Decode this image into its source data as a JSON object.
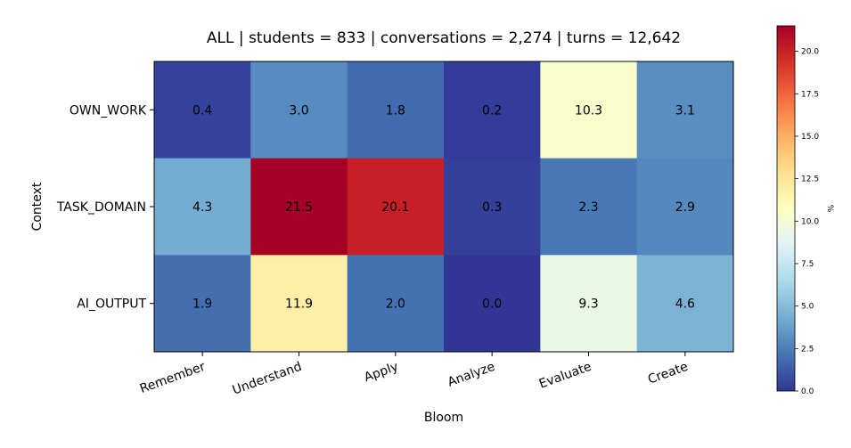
{
  "chart_data": {
    "type": "heatmap",
    "title": "ALL | students = 833 | conversations = 2,274 | turns = 12,642",
    "xlabel": "Bloom",
    "ylabel": "Context",
    "x_categories": [
      "Remember",
      "Understand",
      "Apply",
      "Analyze",
      "Evaluate",
      "Create"
    ],
    "y_categories": [
      "OWN_WORK",
      "TASK_DOMAIN",
      "AI_OUTPUT"
    ],
    "values": [
      [
        0.4,
        3.0,
        1.8,
        0.2,
        10.3,
        3.1
      ],
      [
        4.3,
        21.5,
        20.1,
        0.3,
        2.3,
        2.9
      ],
      [
        1.9,
        11.9,
        2.0,
        0.0,
        9.3,
        4.6
      ]
    ],
    "value_format": "0.0",
    "colormap": "RdYlBu_r",
    "colorbar": {
      "label": "%",
      "min": 0.0,
      "max": 21.5,
      "ticks": [
        0.0,
        2.5,
        5.0,
        7.5,
        10.0,
        12.5,
        15.0,
        17.5,
        20.0
      ],
      "tick_labels": [
        "0.0",
        "2.5",
        "5.0",
        "7.5",
        "10.0",
        "12.5",
        "15.0",
        "17.5",
        "20.0"
      ],
      "stops": [
        "#313695",
        "#4575b4",
        "#74add1",
        "#abd9e9",
        "#e0f3f8",
        "#ffffbf",
        "#fee090",
        "#fdae61",
        "#f46d43",
        "#d73027",
        "#a50026"
      ]
    }
  }
}
